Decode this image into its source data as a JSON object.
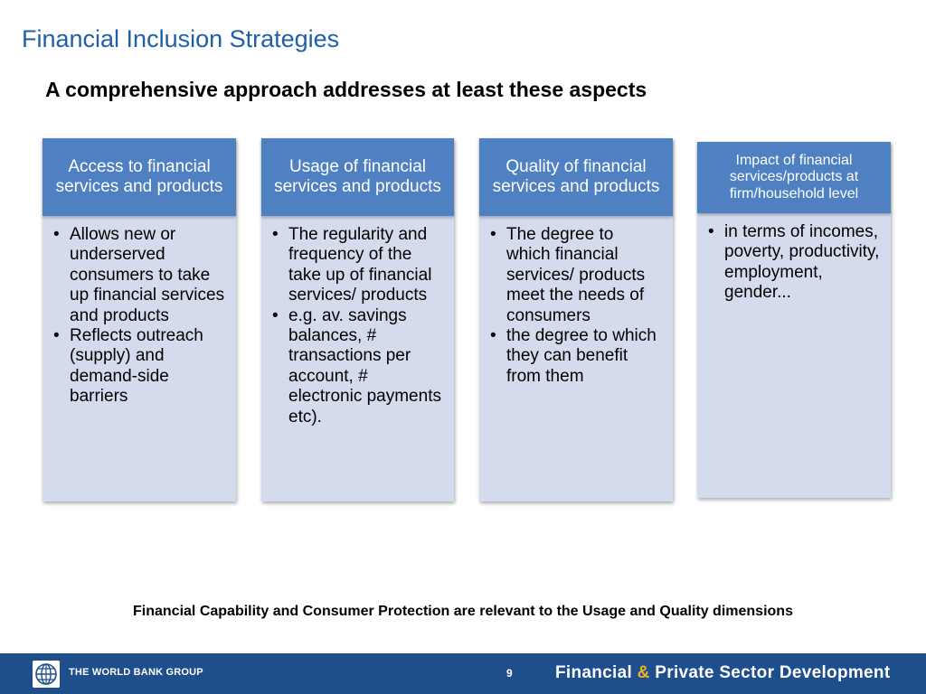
{
  "slide": {
    "title": "Financial Inclusion Strategies",
    "subtitle": "A comprehensive approach addresses at least these aspects"
  },
  "cards": [
    {
      "header": "Access to financial services and products",
      "bullets": [
        "Allows new or underserved consumers to take up financial services and products",
        "Reflects outreach (supply) and demand-side barriers"
      ]
    },
    {
      "header": "Usage of financial services and products",
      "bullets": [
        "The regularity and frequency of the take up of financial services/ products",
        "e.g. av. savings balances, # transactions per account, # electronic payments etc)."
      ]
    },
    {
      "header": "Quality of financial services and products",
      "bullets": [
        "The degree to which financial services/ products meet the needs of consumers",
        "the degree to which they can benefit from them"
      ]
    },
    {
      "header": "Impact of financial services/products at firm/household level",
      "bullets": [
        "in terms of incomes, poverty, productivity, employment, gender..."
      ]
    }
  ],
  "footnote": "Financial Capability and Consumer Protection are relevant to the Usage and Quality dimensions",
  "footer": {
    "org_name": "THE WORLD BANK GROUP",
    "page_number": "9",
    "unit_part1": "Financial",
    "unit_amp": "&",
    "unit_part2": "Private Sector Development"
  },
  "colors": {
    "title": "#1f5fa8",
    "card_header": "#4e80c2",
    "card_body": "#d4dbec",
    "footer_bar": "#1f4e8c",
    "amp": "#f2b32a"
  },
  "icons": {
    "logo": "world-bank-globe-icon"
  }
}
